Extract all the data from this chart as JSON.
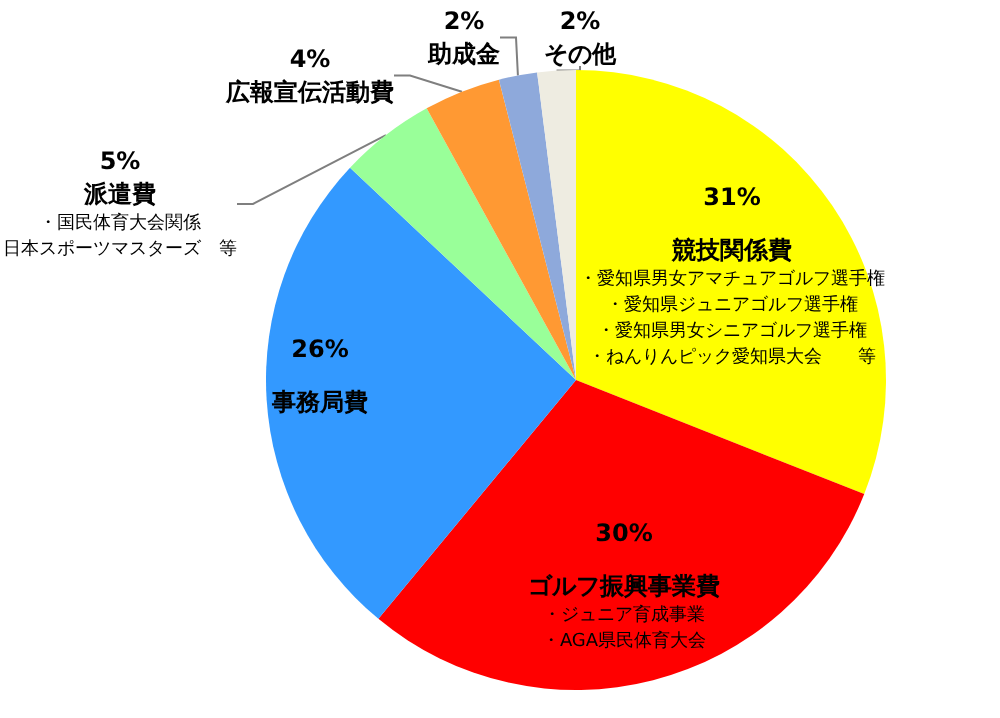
{
  "chart_data": {
    "type": "pie",
    "categories": [
      "競技関係費・愛知県男女アマチュアゴルフ選手権・愛知県ジュニアゴルフ選手権・愛知県男女シニアゴルフ選手権・ねんりんピック愛知県大会　　等",
      "ゴルフ振興事業費・ジュニア育成事業・AGA県民体育大会",
      "事務局費",
      "派遣費・国民体育大会関係日本スポーツマスターズ　等",
      "広報宣伝活動費",
      "助成金",
      "その他"
    ],
    "values": [
      31,
      30,
      26,
      5,
      4,
      2,
      2
    ],
    "value_labels": [
      "31%",
      "30%",
      "26%",
      "5%",
      "4%",
      "2%",
      "2%"
    ],
    "colors": [
      "#ffff00",
      "#ff0000",
      "#3399ff",
      "#99ff99",
      "#ff9933",
      "#8ea9db",
      "#eeece1"
    ]
  }
}
